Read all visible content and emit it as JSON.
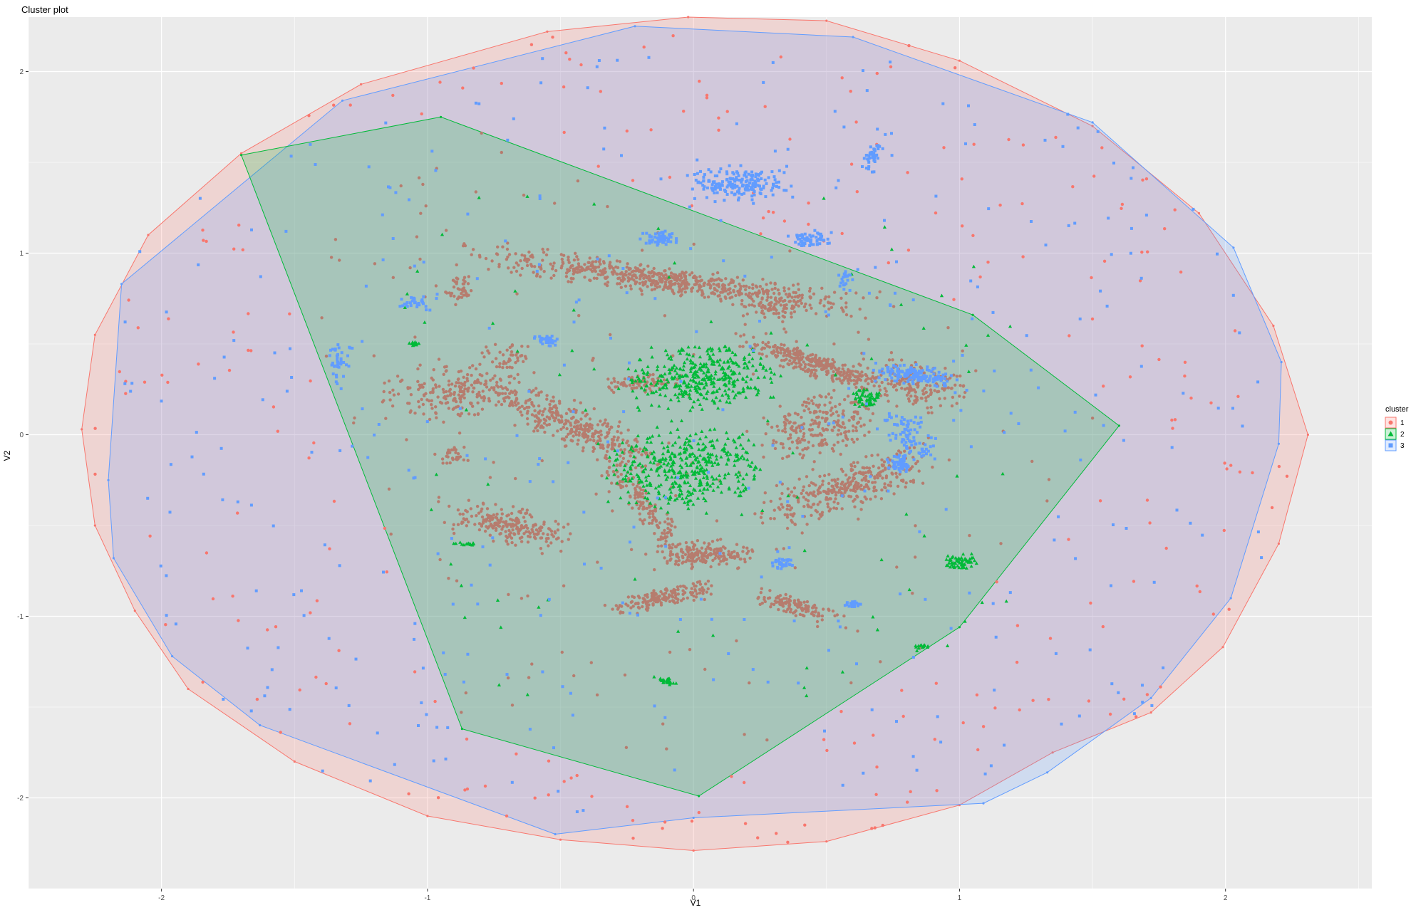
{
  "chart_data": {
    "type": "scatter",
    "title": "Cluster plot",
    "xlabel": "V1",
    "ylabel": "V2",
    "xlim": [
      -2.5,
      2.55
    ],
    "ylim": [
      -2.5,
      2.3
    ],
    "grid": true,
    "legend": {
      "title": "cluster",
      "position": "right",
      "entries": [
        {
          "label": "1",
          "color": "#F8766D",
          "shape": "circle"
        },
        {
          "label": "2",
          "color": "#00BA38",
          "shape": "triangle"
        },
        {
          "label": "3",
          "color": "#619CFF",
          "shape": "square"
        }
      ]
    },
    "x_ticks": [
      {
        "value": -2,
        "label": "-2"
      },
      {
        "value": -1,
        "label": "-1"
      },
      {
        "value": 0,
        "label": "0"
      },
      {
        "value": 1,
        "label": "1"
      },
      {
        "value": 2,
        "label": "2"
      }
    ],
    "y_ticks": [
      {
        "value": -2,
        "label": "-2"
      },
      {
        "value": -1,
        "label": "-1"
      },
      {
        "value": 0,
        "label": "0"
      },
      {
        "value": 1,
        "label": "1"
      },
      {
        "value": 2,
        "label": "2"
      }
    ],
    "hulls": [
      {
        "cluster": "1",
        "color": "#F8766D",
        "points": [
          [
            -0.02,
            2.3
          ],
          [
            0.5,
            2.28
          ],
          [
            1.0,
            2.06
          ],
          [
            1.5,
            1.7
          ],
          [
            1.9,
            1.22
          ],
          [
            2.18,
            0.6
          ],
          [
            2.31,
            0.0
          ],
          [
            2.2,
            -0.6
          ],
          [
            1.99,
            -1.17
          ],
          [
            1.72,
            -1.53
          ],
          [
            1.35,
            -1.75
          ],
          [
            1.0,
            -2.04
          ],
          [
            0.5,
            -2.24
          ],
          [
            0.0,
            -2.29
          ],
          [
            -0.5,
            -2.23
          ],
          [
            -1.0,
            -2.1
          ],
          [
            -1.5,
            -1.8
          ],
          [
            -1.9,
            -1.4
          ],
          [
            -2.1,
            -0.97
          ],
          [
            -2.25,
            -0.5
          ],
          [
            -2.3,
            0.03
          ],
          [
            -2.25,
            0.55
          ],
          [
            -2.05,
            1.1
          ],
          [
            -1.7,
            1.55
          ],
          [
            -1.25,
            1.93
          ],
          [
            -0.55,
            2.22
          ]
        ]
      },
      {
        "cluster": "3",
        "color": "#619CFF",
        "points": [
          [
            -0.22,
            2.25
          ],
          [
            0.6,
            2.19
          ],
          [
            1.5,
            1.72
          ],
          [
            2.03,
            1.03
          ],
          [
            2.21,
            0.4
          ],
          [
            2.2,
            -0.05
          ],
          [
            2.02,
            -0.9
          ],
          [
            1.72,
            -1.45
          ],
          [
            1.33,
            -1.86
          ],
          [
            1.09,
            -2.03
          ],
          [
            0.0,
            -2.11
          ],
          [
            -0.52,
            -2.2
          ],
          [
            -1.63,
            -1.6
          ],
          [
            -1.96,
            -1.22
          ],
          [
            -2.18,
            -0.68
          ],
          [
            -2.2,
            -0.25
          ],
          [
            -2.15,
            0.83
          ],
          [
            -1.32,
            1.84
          ]
        ]
      },
      {
        "cluster": "2",
        "color": "#00BA38",
        "points": [
          [
            -1.7,
            1.54
          ],
          [
            -0.95,
            1.75
          ],
          [
            1.05,
            0.66
          ],
          [
            1.6,
            0.05
          ],
          [
            1.0,
            -1.06
          ],
          [
            0.02,
            -1.99
          ],
          [
            -0.87,
            -1.62
          ]
        ]
      }
    ],
    "series": [
      {
        "name": "1",
        "color": "#F8766D",
        "shape": "circle",
        "scatter_regions": [
          [
            -2.25,
            2.25,
            -2.25,
            2.25,
            420
          ]
        ],
        "dense_regions": [
          [
            -0.1,
            0.85,
            0.68,
            0.07,
            -0.2,
            650
          ],
          [
            0.46,
            0.39,
            0.27,
            0.06,
            -0.45,
            300
          ],
          [
            -0.88,
            0.24,
            0.25,
            0.14,
            0.1,
            220
          ],
          [
            -0.45,
            0.05,
            0.1,
            0.35,
            1.0,
            320
          ],
          [
            0.47,
            0.05,
            0.23,
            0.15,
            0.7,
            240
          ],
          [
            0.58,
            -0.28,
            0.33,
            0.12,
            0.5,
            320
          ],
          [
            -0.7,
            -0.5,
            0.22,
            0.09,
            -0.3,
            220
          ],
          [
            -0.18,
            -0.4,
            0.05,
            0.45,
            0.5,
            160
          ],
          [
            0.04,
            -0.66,
            0.16,
            0.07,
            0.0,
            180
          ],
          [
            -0.13,
            -0.9,
            0.18,
            0.05,
            0.3,
            160
          ],
          [
            0.38,
            -0.94,
            0.14,
            0.05,
            -0.4,
            120
          ],
          [
            0.83,
            0.28,
            0.2,
            0.12,
            -0.3,
            180
          ],
          [
            -0.88,
            0.8,
            0.05,
            0.08,
            0.0,
            40
          ],
          [
            -0.7,
            0.43,
            0.1,
            0.08,
            0.0,
            40
          ],
          [
            -0.18,
            0.28,
            0.14,
            0.05,
            0.0,
            80
          ],
          [
            0.3,
            0.7,
            0.1,
            0.05,
            0.0,
            60
          ],
          [
            -0.9,
            -0.12,
            0.05,
            0.05,
            0.0,
            30
          ]
        ]
      },
      {
        "name": "2",
        "color": "#00BA38",
        "shape": "triangle",
        "scatter_regions": [
          [
            -1.2,
            1.2,
            -1.5,
            1.4,
            80
          ]
        ],
        "dense_regions": [
          [
            0.02,
            0.32,
            0.26,
            0.16,
            0.0,
            380
          ],
          [
            -0.02,
            -0.18,
            0.27,
            0.22,
            0.0,
            420
          ],
          [
            0.65,
            0.2,
            0.05,
            0.05,
            0.0,
            60
          ],
          [
            1.0,
            -0.7,
            0.06,
            0.04,
            0.0,
            60
          ],
          [
            -0.1,
            -1.36,
            0.03,
            0.02,
            0.0,
            30
          ],
          [
            -1.05,
            0.5,
            0.02,
            0.01,
            0.0,
            15
          ],
          [
            -0.85,
            -0.6,
            0.05,
            0.01,
            0.0,
            15
          ],
          [
            0.85,
            -1.17,
            0.03,
            0.02,
            0.0,
            15
          ]
        ]
      },
      {
        "name": "3",
        "color": "#619CFF",
        "shape": "square",
        "scatter_regions": [
          [
            -2.15,
            2.15,
            -2.1,
            2.1,
            380
          ]
        ],
        "dense_regions": [
          [
            0.18,
            1.38,
            0.17,
            0.09,
            0.0,
            200
          ],
          [
            0.83,
            0.33,
            0.14,
            0.05,
            -0.2,
            150
          ],
          [
            0.8,
            0.0,
            0.08,
            0.15,
            0.5,
            90
          ],
          [
            0.77,
            -0.16,
            0.04,
            0.04,
            0.0,
            50
          ],
          [
            -0.12,
            1.08,
            0.07,
            0.04,
            0.0,
            60
          ],
          [
            0.43,
            1.08,
            0.07,
            0.04,
            0.0,
            60
          ],
          [
            0.67,
            1.53,
            0.03,
            0.09,
            -0.3,
            40
          ],
          [
            -0.55,
            0.52,
            0.04,
            0.03,
            0.0,
            40
          ],
          [
            0.33,
            -0.71,
            0.04,
            0.03,
            0.0,
            30
          ],
          [
            0.6,
            -0.93,
            0.03,
            0.02,
            0.0,
            20
          ],
          [
            -1.33,
            0.4,
            0.05,
            0.1,
            0.0,
            40
          ],
          [
            -1.05,
            0.73,
            0.08,
            0.05,
            0.0,
            30
          ],
          [
            0.57,
            0.85,
            0.03,
            0.05,
            0.0,
            20
          ]
        ]
      }
    ]
  }
}
